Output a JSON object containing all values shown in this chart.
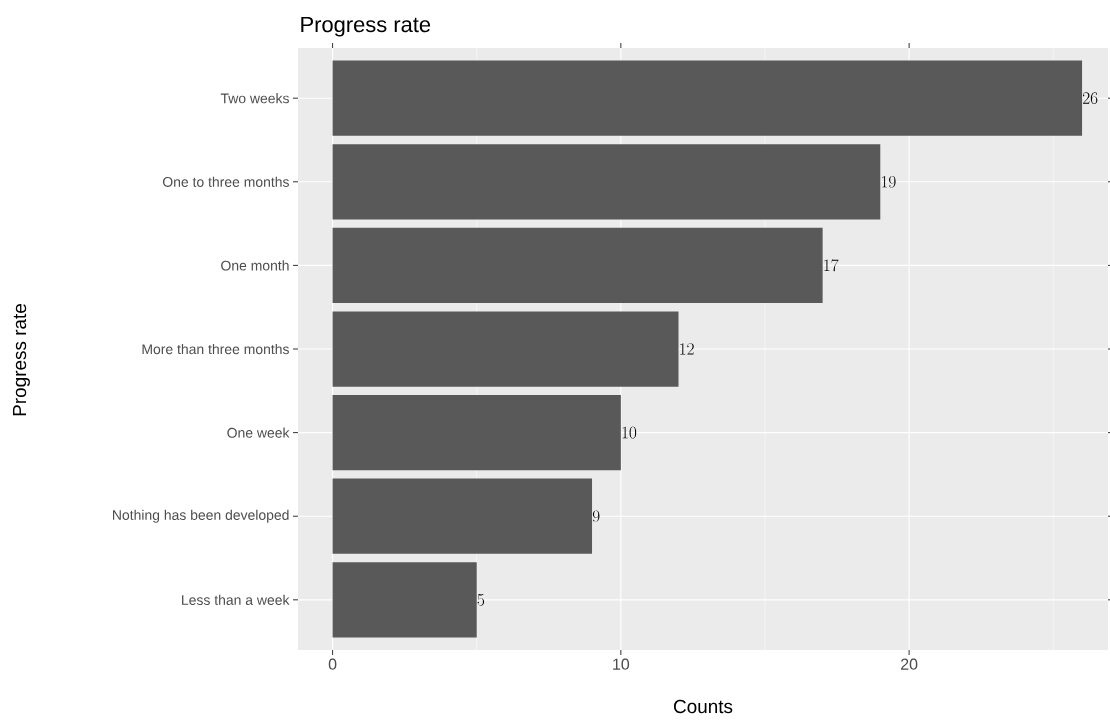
{
  "chart_data": {
    "type": "bar",
    "orientation": "horizontal",
    "title": "Progress rate",
    "xlabel": "Counts",
    "ylabel": "Progress rate",
    "categories": [
      "Two weeks",
      "One to three months",
      "One month",
      "More than three months",
      "One week",
      "Nothing has been developed",
      "Less than a week"
    ],
    "values": [
      26,
      19,
      17,
      12,
      10,
      9,
      5
    ],
    "color": "#595959",
    "xlim": [
      -1.2,
      26.9
    ],
    "xticks": [
      0,
      10,
      20
    ],
    "grid": true,
    "data_labels": true
  }
}
